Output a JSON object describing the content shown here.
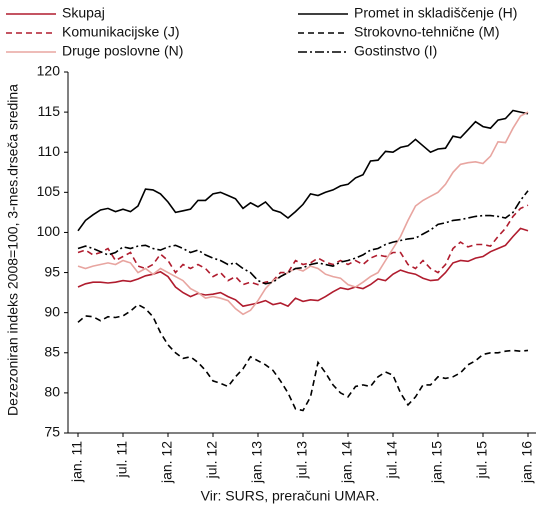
{
  "chart_data": {
    "type": "line",
    "y_label": "Dezezoniran indeks 2008=100, 3-mes.drseča sredina",
    "source": "Vir:  SURS, preračuni UMAR.",
    "categories": [
      "jan. 11",
      null,
      null,
      null,
      null,
      null,
      "jul. 11",
      null,
      null,
      null,
      null,
      null,
      "jan. 12",
      null,
      null,
      null,
      null,
      null,
      "jul. 12",
      null,
      null,
      null,
      null,
      null,
      "jan. 13",
      null,
      null,
      null,
      null,
      null,
      "jul. 13",
      null,
      null,
      null,
      null,
      null,
      "jan. 14",
      null,
      null,
      null,
      null,
      null,
      "jul. 14",
      null,
      null,
      null,
      null,
      null,
      "jan. 15",
      null,
      null,
      null,
      null,
      null,
      "jul. 15",
      null,
      null,
      null,
      null,
      null,
      "jan. 16"
    ],
    "ylim": [
      75,
      120
    ],
    "yticks": [
      75,
      80,
      85,
      90,
      95,
      100,
      105,
      110,
      115,
      120
    ],
    "grid": false,
    "series": [
      {
        "name": "Skupaj",
        "color": "#b01c2e",
        "dash": "solid",
        "values": [
          93.2,
          93.6,
          93.8,
          93.8,
          93.7,
          93.8,
          94.0,
          93.9,
          94.2,
          94.6,
          94.8,
          95.1,
          94.5,
          93.2,
          92.5,
          92.0,
          92.4,
          92.2,
          92.3,
          92.5,
          92.0,
          91.6,
          90.8,
          91.0,
          91.2,
          91.5,
          91.0,
          91.2,
          90.8,
          91.8,
          91.4,
          91.6,
          91.5,
          92.0,
          92.6,
          93.1,
          92.9,
          93.2,
          93.0,
          93.5,
          94.2,
          94.0,
          94.8,
          95.3,
          95.0,
          94.8,
          94.3,
          94.0,
          94.1,
          95.0,
          96.2,
          96.5,
          96.4,
          96.8,
          97.0,
          97.6,
          98.0,
          98.4,
          99.5,
          100.5,
          100.2
        ]
      },
      {
        "name": "Promet in skladiščenje (H)",
        "color": "#000000",
        "dash": "solid",
        "values": [
          100.2,
          101.5,
          102.2,
          102.8,
          103.0,
          102.6,
          102.9,
          102.6,
          103.3,
          105.4,
          105.3,
          104.8,
          103.8,
          102.5,
          102.7,
          102.9,
          104.0,
          104.0,
          104.8,
          105.0,
          104.6,
          104.2,
          103.0,
          103.7,
          103.2,
          103.8,
          102.8,
          102.5,
          101.8,
          102.6,
          103.5,
          104.8,
          104.6,
          105.0,
          105.3,
          105.8,
          106.0,
          106.8,
          107.2,
          108.9,
          109.0,
          110.1,
          110.0,
          110.6,
          110.8,
          111.6,
          110.8,
          110.0,
          110.4,
          110.5,
          112.0,
          111.8,
          112.8,
          113.8,
          113.2,
          113.0,
          114.0,
          114.2,
          115.2,
          115.0,
          114.8
        ]
      },
      {
        "name": "Komunikacijske (J)",
        "color": "#b01c2e",
        "dash": "dashed",
        "values": [
          97.5,
          97.8,
          97.2,
          97.5,
          98.0,
          96.5,
          97.0,
          97.5,
          95.8,
          95.5,
          96.0,
          97.3,
          96.5,
          95.0,
          96.0,
          95.5,
          96.0,
          95.5,
          94.5,
          95.0,
          94.0,
          94.5,
          93.5,
          93.8,
          93.5,
          93.8,
          94.0,
          95.0,
          95.0,
          96.5,
          96.0,
          96.2,
          96.8,
          96.3,
          96.0,
          96.5,
          96.0,
          96.5,
          96.0,
          96.8,
          97.2,
          97.0,
          97.5,
          97.5,
          96.0,
          95.5,
          96.5,
          95.5,
          95.0,
          96.0,
          98.0,
          98.8,
          98.2,
          98.5,
          98.5,
          98.3,
          99.5,
          100.5,
          102.0,
          103.0,
          103.4
        ]
      },
      {
        "name": "Strokovno-tehnične (M)",
        "color": "#000000",
        "dash": "dashed",
        "values": [
          88.8,
          89.6,
          89.5,
          89.0,
          89.5,
          89.4,
          89.6,
          90.2,
          91.0,
          90.5,
          89.5,
          87.5,
          86.0,
          85.0,
          84.3,
          84.5,
          83.8,
          82.8,
          81.5,
          81.2,
          80.8,
          82.0,
          83.0,
          84.5,
          84.0,
          83.5,
          82.8,
          81.5,
          80.0,
          78.0,
          77.8,
          79.5,
          83.8,
          82.5,
          81.0,
          80.0,
          79.5,
          80.8,
          81.0,
          80.8,
          82.0,
          82.6,
          82.2,
          80.0,
          78.5,
          79.5,
          81.0,
          81.0,
          82.0,
          81.8,
          82.0,
          82.5,
          83.5,
          84.0,
          84.8,
          85.0,
          85.0,
          85.2,
          85.3,
          85.2,
          85.3
        ]
      },
      {
        "name": "Druge poslovne (N)",
        "color": "#e8a5a0",
        "dash": "solid",
        "values": [
          95.8,
          95.5,
          95.8,
          96.0,
          96.2,
          96.0,
          96.5,
          96.2,
          95.0,
          95.5,
          94.8,
          95.5,
          95.0,
          94.5,
          94.0,
          93.0,
          92.5,
          91.8,
          92.0,
          91.8,
          91.5,
          90.5,
          89.8,
          90.3,
          91.5,
          93.0,
          94.0,
          94.5,
          95.0,
          95.5,
          95.2,
          95.8,
          95.5,
          94.8,
          94.5,
          94.3,
          93.5,
          93.2,
          93.8,
          94.5,
          95.0,
          96.5,
          98.0,
          99.5,
          101.5,
          103.3,
          104.0,
          104.5,
          105.0,
          106.0,
          107.5,
          108.5,
          108.7,
          108.8,
          108.6,
          109.5,
          111.3,
          111.2,
          113.0,
          114.5,
          115.0
        ]
      },
      {
        "name": "Gostinstvo (I)",
        "color": "#000000",
        "dash": "dashdot",
        "values": [
          98.0,
          98.3,
          98.0,
          97.6,
          97.2,
          97.5,
          98.2,
          98.0,
          98.3,
          98.4,
          98.0,
          97.8,
          98.2,
          98.4,
          98.0,
          97.5,
          97.8,
          97.2,
          96.8,
          96.5,
          96.0,
          96.2,
          95.5,
          95.0,
          94.0,
          93.6,
          93.8,
          94.5,
          95.0,
          95.5,
          95.6,
          96.0,
          96.2,
          96.0,
          95.8,
          96.3,
          96.5,
          96.8,
          97.2,
          97.8,
          98.0,
          98.5,
          98.8,
          99.0,
          99.2,
          99.3,
          99.8,
          100.3,
          101.0,
          101.2,
          101.5,
          101.6,
          101.8,
          102.0,
          102.1,
          102.1,
          102.0,
          101.8,
          102.5,
          104.0,
          105.2
        ]
      }
    ]
  }
}
